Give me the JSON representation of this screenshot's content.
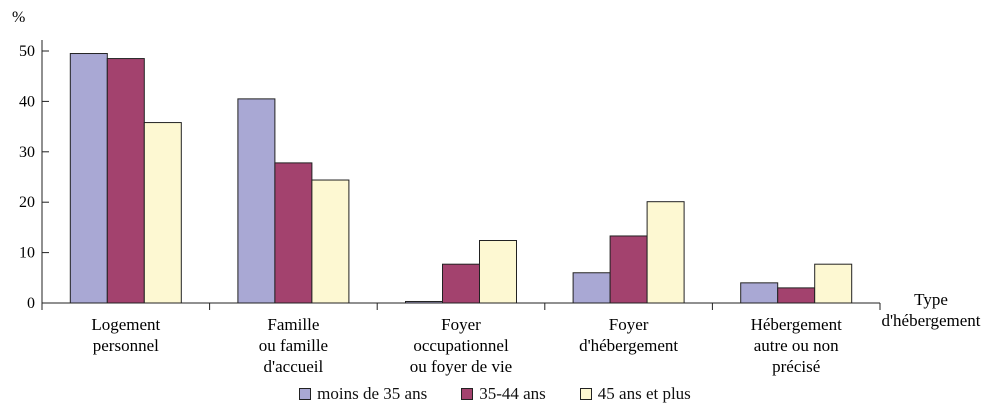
{
  "chart_data": {
    "type": "bar",
    "ylabel": "%",
    "xlabel": "Type\nd'hébergement",
    "ylim": [
      0,
      50
    ],
    "yticks": [
      0,
      10,
      20,
      30,
      40,
      50
    ],
    "categories": [
      "Logement\npersonnel",
      "Famille\nou famille\nd'accueil",
      "Foyer\noccupationnel\nou foyer de vie",
      "Foyer\nd'hébergement",
      "Hébergement\nautre ou non\nprécisé"
    ],
    "series": [
      {
        "name": "moins de 35 ans",
        "color": "#a9a8d4",
        "values": [
          49.5,
          40.5,
          0.3,
          6.0,
          4.0
        ]
      },
      {
        "name": "35-44 ans",
        "color": "#a3426e",
        "values": [
          48.5,
          27.8,
          7.7,
          13.3,
          3.0
        ]
      },
      {
        "name": "45 ans et plus",
        "color": "#fdf8d2",
        "values": [
          35.8,
          24.4,
          12.4,
          20.1,
          7.7
        ]
      }
    ],
    "grid": false,
    "legend_position": "bottom"
  }
}
